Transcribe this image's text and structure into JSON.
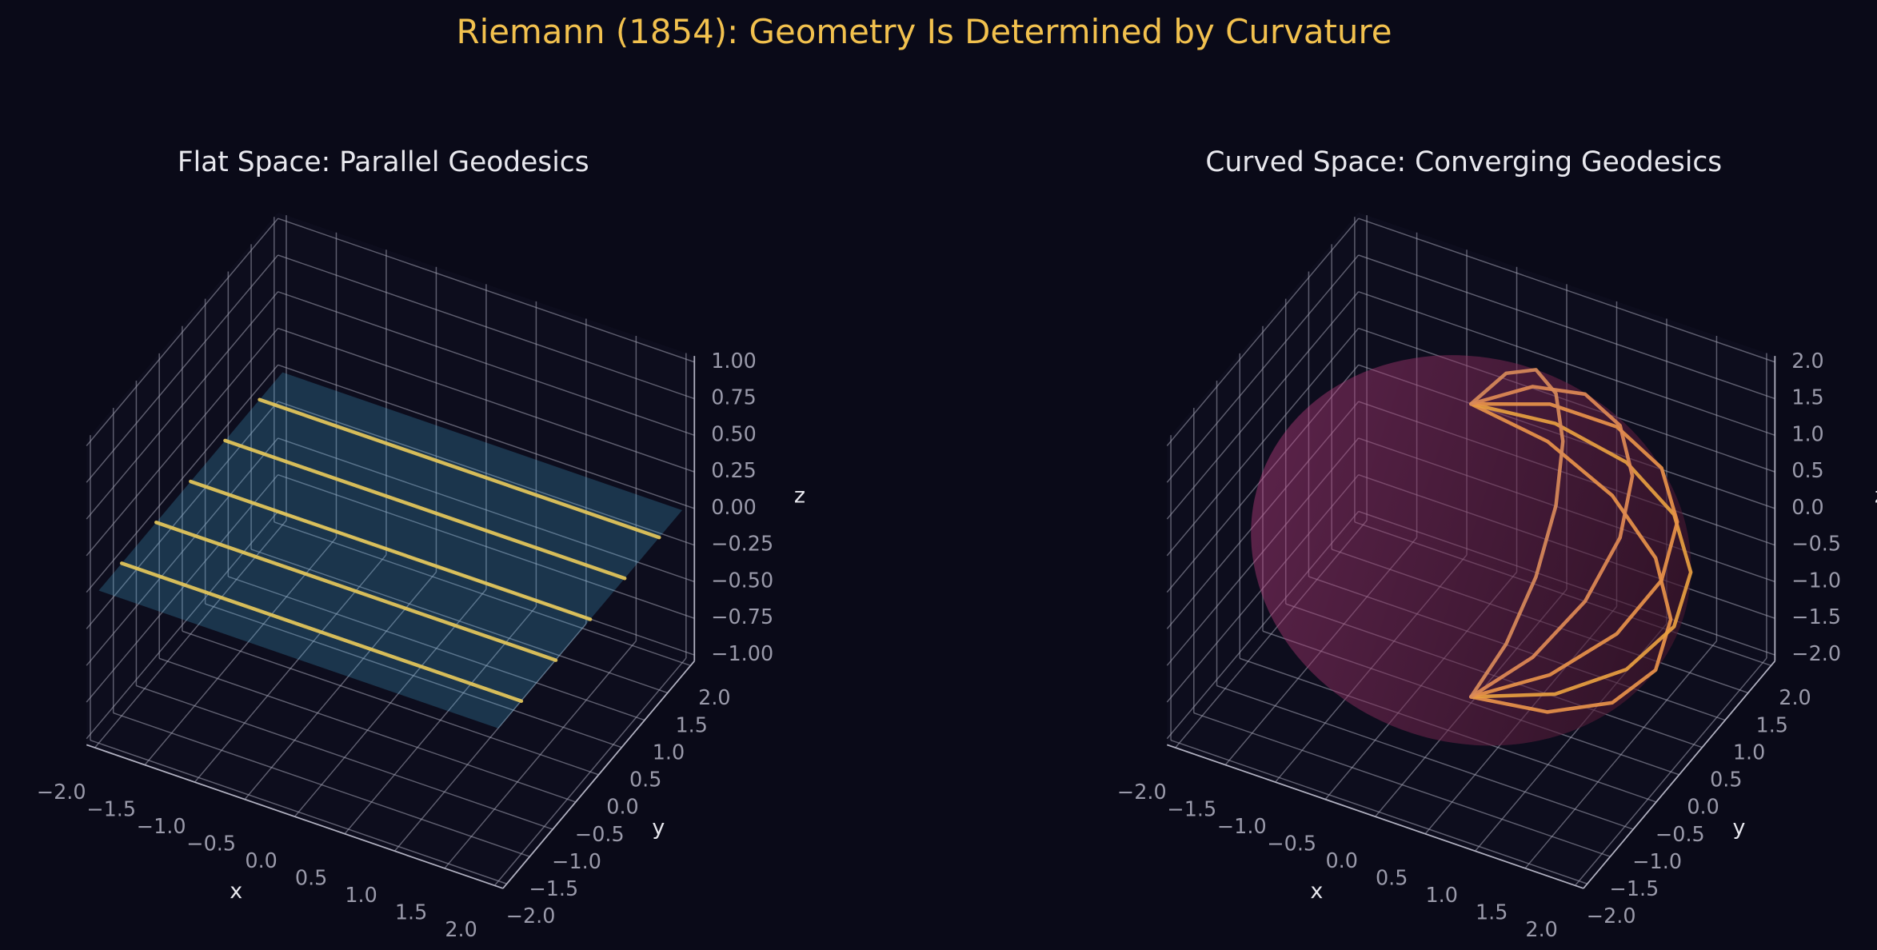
{
  "title": "Riemann (1854): Geometry Is Determined by Curvature",
  "chart_data": [
    {
      "type": "plane3d",
      "title": "Flat Space: Parallel Geodesics",
      "x_label": "x",
      "y_label": "y",
      "z_label": "z",
      "xlim": [
        -2,
        2
      ],
      "ylim": [
        -2,
        2
      ],
      "zlim": [
        -1,
        1
      ],
      "xticks": [
        {
          "value": -2,
          "label": "−2.0"
        },
        {
          "value": -1.5,
          "label": "−1.5"
        },
        {
          "value": -1,
          "label": "−1.0"
        },
        {
          "value": -0.5,
          "label": "−0.5"
        },
        {
          "value": 0,
          "label": "0.0"
        },
        0.5,
        {
          "value": 1,
          "label": "1.0"
        },
        1.5,
        {
          "value": 2,
          "label": "2.0"
        }
      ],
      "yticks": [
        {
          "value": -2,
          "label": "−2.0"
        },
        {
          "value": -1.5,
          "label": "−1.5"
        },
        {
          "value": -1,
          "label": "−1.0"
        },
        {
          "value": -0.5,
          "label": "−0.5"
        },
        {
          "value": 0,
          "label": "0.0"
        },
        0.5,
        {
          "value": 1,
          "label": "1.0"
        },
        1.5,
        {
          "value": 2,
          "label": "2.0"
        }
      ],
      "zticks": [
        {
          "value": -1,
          "label": "−1.00"
        },
        {
          "value": -0.75,
          "label": "−0.75"
        },
        {
          "value": -0.5,
          "label": "−0.50"
        },
        {
          "value": -0.25,
          "label": "−0.25"
        },
        {
          "value": 0,
          "label": "0.00"
        },
        0.25,
        {
          "value": 0.5,
          "label": "0.50"
        },
        0.75,
        {
          "value": 1,
          "label": "1.00"
        }
      ],
      "grid": true,
      "surface": {
        "x": [
          -2,
          2
        ],
        "y": [
          -2,
          2
        ],
        "z": 0,
        "color": "#4fc3f7"
      },
      "series": [
        {
          "color": "#e6c85a",
          "x": [
            -2,
            2
          ],
          "y": [
            -1.5,
            -1.5
          ],
          "z": [
            0,
            0
          ]
        },
        {
          "color": "#e6c85a",
          "x": [
            -2,
            2
          ],
          "y": [
            -0.75,
            -0.75
          ],
          "z": [
            0,
            0
          ]
        },
        {
          "color": "#e6c85a",
          "x": [
            -2,
            2
          ],
          "y": [
            0,
            0
          ],
          "z": [
            0,
            0
          ]
        },
        {
          "color": "#e6c85a",
          "x": [
            -2,
            2
          ],
          "y": [
            0.75,
            0.75
          ],
          "z": [
            0,
            0
          ]
        },
        {
          "color": "#e6c85a",
          "x": [
            -2,
            2
          ],
          "y": [
            1.5,
            1.5
          ],
          "z": [
            0,
            0
          ]
        }
      ]
    },
    {
      "type": "sphere3d",
      "title": "Curved Space: Converging Geodesics",
      "x_label": "x",
      "y_label": "y",
      "z_label": "z",
      "xlim": [
        -2,
        2
      ],
      "ylim": [
        -2,
        2
      ],
      "zlim": [
        -2,
        2
      ],
      "xticks": [
        {
          "value": -2,
          "label": "−2.0"
        },
        {
          "value": -1.5,
          "label": "−1.5"
        },
        {
          "value": -1,
          "label": "−1.0"
        },
        {
          "value": -0.5,
          "label": "−0.5"
        },
        {
          "value": 0,
          "label": "0.0"
        },
        0.5,
        {
          "value": 1,
          "label": "1.0"
        },
        1.5,
        {
          "value": 2,
          "label": "2.0"
        }
      ],
      "yticks": [
        {
          "value": -2,
          "label": "−2.0"
        },
        {
          "value": -1.5,
          "label": "−1.5"
        },
        {
          "value": -1,
          "label": "−1.0"
        },
        {
          "value": -0.5,
          "label": "−0.5"
        },
        {
          "value": 0,
          "label": "0.0"
        },
        0.5,
        {
          "value": 1,
          "label": "1.0"
        },
        1.5,
        {
          "value": 2,
          "label": "2.0"
        }
      ],
      "zticks": [
        {
          "value": -2,
          "label": "−2.0"
        },
        {
          "value": -1.5,
          "label": "−1.5"
        },
        {
          "value": -1,
          "label": "−1.0"
        },
        {
          "value": -0.5,
          "label": "−0.5"
        },
        {
          "value": 0,
          "label": "0.0"
        },
        0.5,
        {
          "value": 1,
          "label": "1.0"
        },
        1.5,
        {
          "value": 2,
          "label": "2.0"
        }
      ],
      "grid": true,
      "surface": {
        "center": [
          0,
          0,
          0
        ],
        "radius": 2,
        "color": "#d6448f"
      },
      "series": [
        {
          "color": "#e8924a",
          "x": [
            0,
            0.765,
            1.414,
            1.848,
            2,
            1.848,
            1.414,
            0.765,
            0
          ],
          "y": [
            0,
            0,
            0,
            0,
            0,
            0,
            0,
            0,
            0
          ],
          "z": [
            2,
            1.848,
            1.414,
            0.765,
            0,
            -0.765,
            -1.414,
            -1.848,
            -2
          ]
        },
        {
          "color": "#e8a040",
          "x": [
            0,
            0.707,
            1.307,
            1.707,
            1.848,
            1.707,
            1.307,
            0.707,
            0
          ],
          "y": [
            0,
            0.293,
            0.541,
            0.707,
            0.765,
            0.707,
            0.541,
            0.293,
            0
          ],
          "z": [
            2,
            1.848,
            1.414,
            0.765,
            0,
            -0.765,
            -1.414,
            -1.848,
            -2
          ]
        },
        {
          "color": "#e8924a",
          "x": [
            0,
            0.541,
            1,
            1.307,
            1.414,
            1.307,
            1,
            0.541,
            0
          ],
          "y": [
            0,
            0.541,
            1,
            1.307,
            1.414,
            1.307,
            1,
            0.541,
            0
          ],
          "z": [
            2,
            1.848,
            1.414,
            0.765,
            0,
            -0.765,
            -1.414,
            -1.848,
            -2
          ]
        },
        {
          "color": "#e08a55",
          "x": [
            0,
            0.293,
            0.541,
            0.707,
            0.765,
            0.707,
            0.541,
            0.293,
            0
          ],
          "y": [
            0,
            0.707,
            1.307,
            1.707,
            1.848,
            1.707,
            1.307,
            0.707,
            0
          ],
          "z": [
            2,
            1.848,
            1.414,
            0.765,
            0,
            -0.765,
            -1.414,
            -1.848,
            -2
          ]
        },
        {
          "color": "#d88a5a",
          "x": [
            0,
            0,
            0,
            0,
            0,
            0,
            0,
            0,
            0
          ],
          "y": [
            0,
            0.765,
            1.414,
            1.848,
            2,
            1.848,
            1.414,
            0.765,
            0
          ],
          "z": [
            2,
            1.848,
            1.414,
            0.765,
            0,
            -0.765,
            -1.414,
            -1.848,
            -2
          ]
        }
      ]
    }
  ]
}
